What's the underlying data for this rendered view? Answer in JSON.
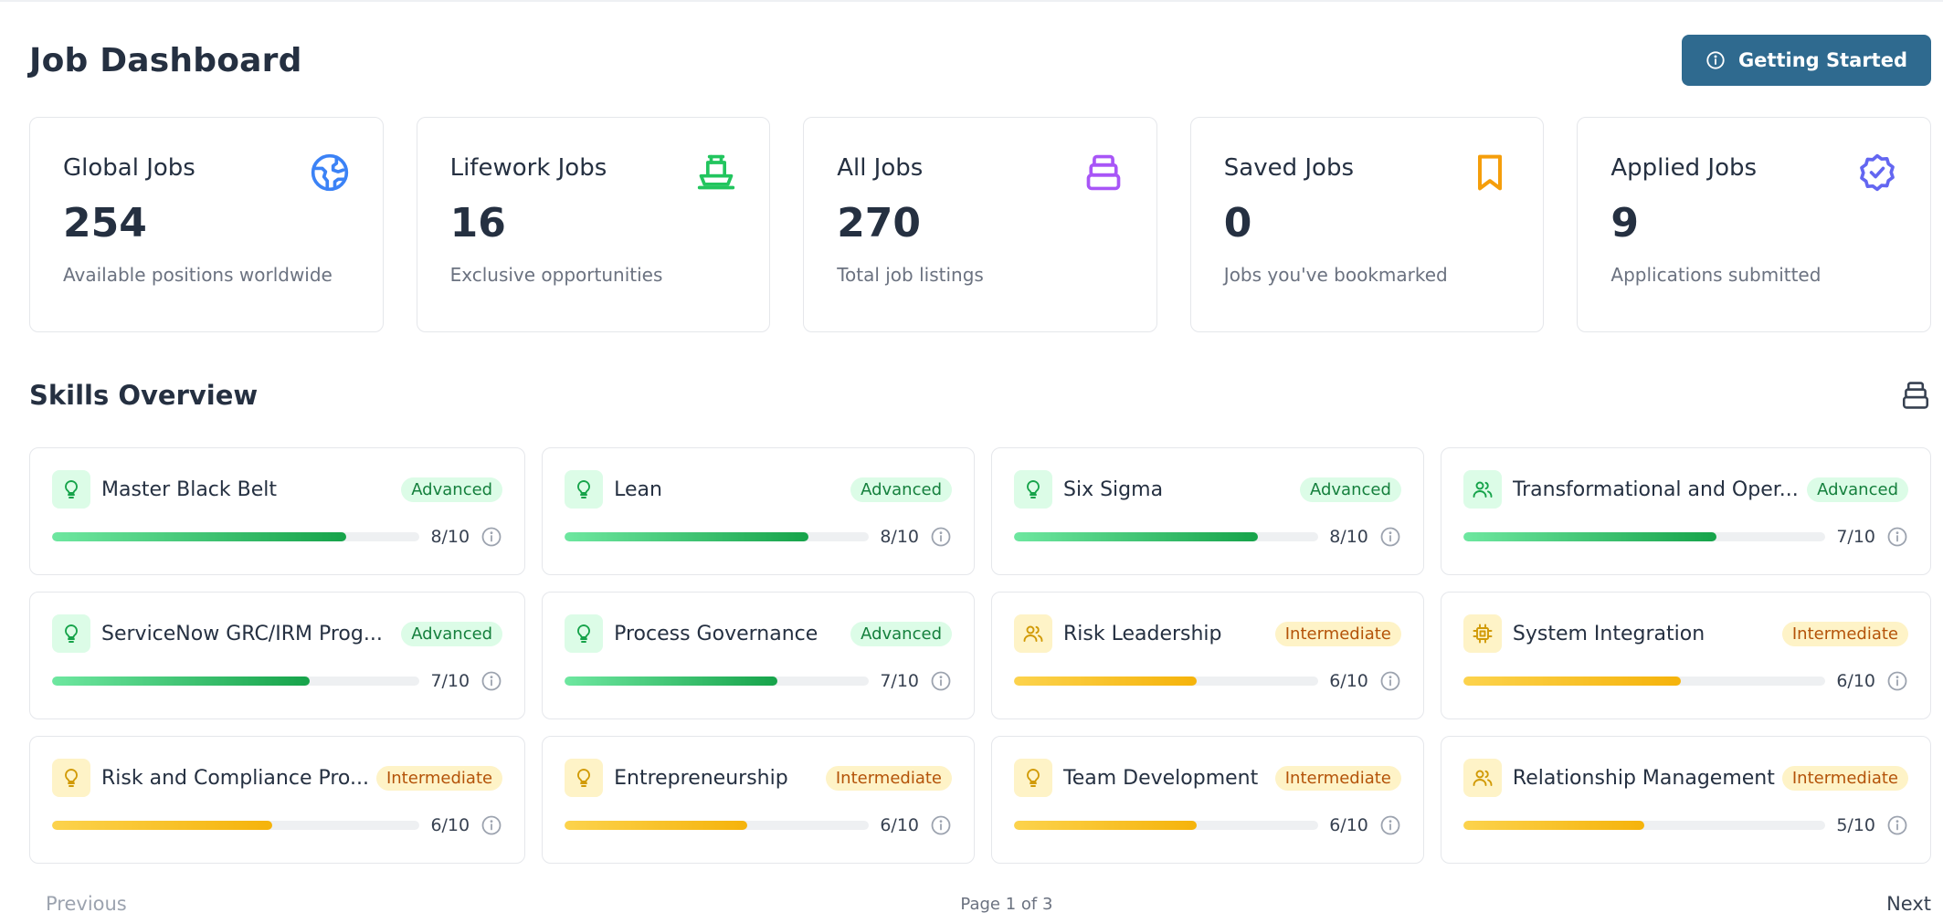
{
  "header": {
    "title": "Job Dashboard",
    "getting_started_label": "Getting Started",
    "getting_started_icon": "info-circle-icon"
  },
  "stats": [
    {
      "title": "Global Jobs",
      "value": "254",
      "subtitle": "Available positions worldwide",
      "icon": "globe-icon",
      "color": "#3b82f6"
    },
    {
      "title": "Lifework Jobs",
      "value": "16",
      "subtitle": "Exclusive opportunities",
      "icon": "ship-icon",
      "color": "#22c55e"
    },
    {
      "title": "All Jobs",
      "value": "270",
      "subtitle": "Total job listings",
      "icon": "database-icon",
      "color": "#a855f7"
    },
    {
      "title": "Saved Jobs",
      "value": "0",
      "subtitle": "Jobs you've bookmarked",
      "icon": "bookmark-icon",
      "color": "#f59e0b"
    },
    {
      "title": "Applied Jobs",
      "value": "9",
      "subtitle": "Applications submitted",
      "icon": "badge-check-icon",
      "color": "#6366f1"
    }
  ],
  "skills_section": {
    "title": "Skills Overview",
    "action_icon": "database-icon"
  },
  "skills": [
    {
      "name": "Master Black Belt",
      "level": "Advanced",
      "score": "8/10",
      "fraction": 0.8,
      "icon": "lightbulb-icon"
    },
    {
      "name": "Lean",
      "level": "Advanced",
      "score": "8/10",
      "fraction": 0.8,
      "icon": "lightbulb-icon"
    },
    {
      "name": "Six Sigma",
      "level": "Advanced",
      "score": "8/10",
      "fraction": 0.8,
      "icon": "lightbulb-icon"
    },
    {
      "name": "Transformational and Oper...",
      "level": "Advanced",
      "score": "7/10",
      "fraction": 0.7,
      "icon": "users-icon"
    },
    {
      "name": "ServiceNow GRC/IRM Prog...",
      "level": "Advanced",
      "score": "7/10",
      "fraction": 0.7,
      "icon": "lightbulb-icon"
    },
    {
      "name": "Process Governance",
      "level": "Advanced",
      "score": "7/10",
      "fraction": 0.7,
      "icon": "lightbulb-icon"
    },
    {
      "name": "Risk Leadership",
      "level": "Intermediate",
      "score": "6/10",
      "fraction": 0.6,
      "icon": "users-icon"
    },
    {
      "name": "System Integration",
      "level": "Intermediate",
      "score": "6/10",
      "fraction": 0.6,
      "icon": "chip-icon"
    },
    {
      "name": "Risk and Compliance Pro...",
      "level": "Intermediate",
      "score": "6/10",
      "fraction": 0.6,
      "icon": "lightbulb-icon"
    },
    {
      "name": "Entrepreneurship",
      "level": "Intermediate",
      "score": "6/10",
      "fraction": 0.6,
      "icon": "lightbulb-icon"
    },
    {
      "name": "Team Development",
      "level": "Intermediate",
      "score": "6/10",
      "fraction": 0.6,
      "icon": "lightbulb-icon"
    },
    {
      "name": "Relationship Management",
      "level": "Intermediate",
      "score": "5/10",
      "fraction": 0.5,
      "icon": "users-icon"
    }
  ],
  "pagination": {
    "previous_label": "Previous",
    "page_info": "Page 1 of 3",
    "next_label": "Next"
  },
  "colors": {
    "primary": "#2f6a8f",
    "advanced": "#16a34a",
    "intermediate": "#f5b30b"
  }
}
